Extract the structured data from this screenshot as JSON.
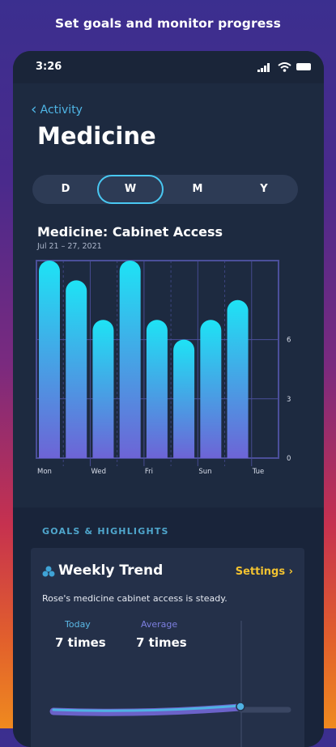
{
  "banner": "Set goals and monitor progress",
  "status_bar": {
    "time": "3:26"
  },
  "nav": {
    "back_label": "Activity"
  },
  "page_title": "Medicine",
  "segments": [
    {
      "label": "D",
      "active": false
    },
    {
      "label": "W",
      "active": true
    },
    {
      "label": "M",
      "active": false
    },
    {
      "label": "Y",
      "active": false
    }
  ],
  "chart_data": {
    "type": "bar",
    "title": "Medicine: Cabinet Access",
    "subtitle": "Jul 21 – 27, 2021",
    "categories": [
      "Mon",
      "",
      "Wed",
      "",
      "Fri",
      "",
      "Sun",
      "",
      "Tue"
    ],
    "values": [
      10,
      9,
      7,
      10,
      7,
      6,
      7,
      8,
      0
    ],
    "ylim": [
      0,
      10
    ],
    "yticks": [
      0,
      3,
      6
    ],
    "grid": true,
    "colors": {
      "bar_top": "#1ee3f5",
      "bar_bottom": "#6d64d6",
      "grid": "#4b4f9a"
    }
  },
  "goals": {
    "section_label": "GOALS & HIGHLIGHTS",
    "card": {
      "icon": "trend-icon",
      "title": "Weekly Trend",
      "settings_label": "Settings",
      "description": "Rose's medicine cabinet access is steady.",
      "today_label": "Today",
      "today_value": "7 times",
      "average_label": "Average",
      "average_value": "7 times"
    }
  },
  "colors": {
    "accent_blue": "#4fb6e6",
    "accent_yellow": "#f2c230",
    "panel": "#1d2a40"
  }
}
